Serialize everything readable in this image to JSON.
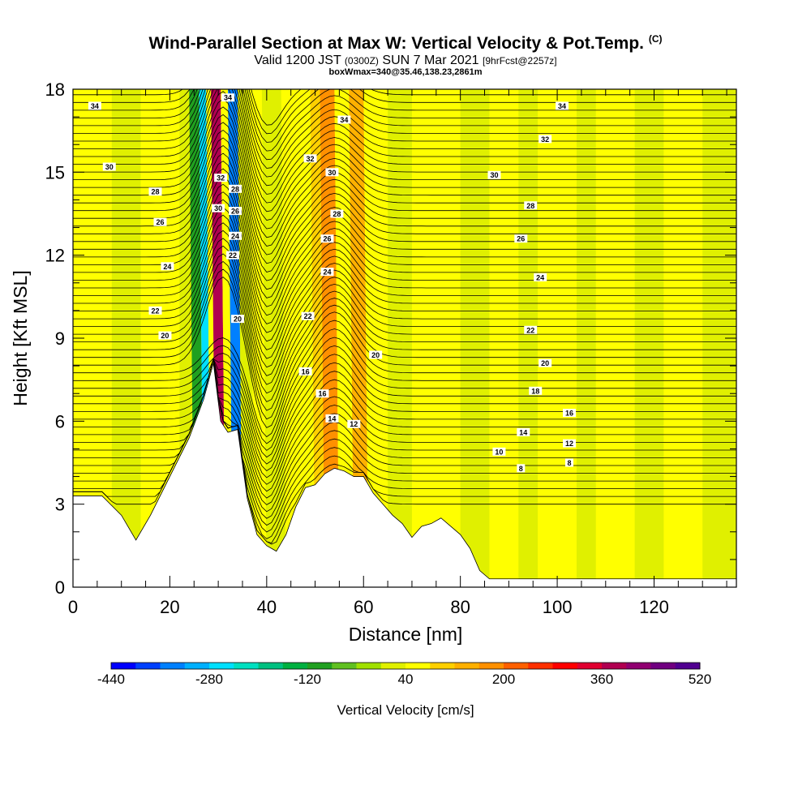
{
  "title": {
    "main": "Wind-Parallel Section at Max W: Vertical Velocity & Pot.Temp.",
    "main_unit": "(C)",
    "valid_prefix": "Valid 1200 JST",
    "valid_utc": "(0300Z)",
    "valid_date": "SUN 7 Mar 2021",
    "forecast": "[9hrFcst@2257z]",
    "box": "boxWmax=340@35.46,138.23,2861m"
  },
  "chart_data": {
    "type": "heatmap",
    "xlabel": "Distance [nm]",
    "ylabel": "Height [Kft MSL]",
    "xlim": [
      0,
      137
    ],
    "ylim": [
      0,
      18
    ],
    "xticks": [
      0,
      20,
      40,
      60,
      80,
      100,
      120
    ],
    "yticks": [
      0,
      3,
      6,
      9,
      12,
      15,
      18
    ],
    "colorbar": {
      "label": "Vertical Velocity [cm/s]",
      "min": -440,
      "max": 520,
      "step": 40,
      "tick_values": [
        -440,
        -280,
        -120,
        40,
        200,
        360,
        520
      ],
      "colors": [
        "#0000ff",
        "#0040ff",
        "#0080ff",
        "#00b0ff",
        "#00e0ff",
        "#00e0c0",
        "#00c080",
        "#00b040",
        "#20a020",
        "#60c020",
        "#a0e000",
        "#e0f000",
        "#ffff00",
        "#ffd000",
        "#ffb000",
        "#ff9000",
        "#ff6000",
        "#ff3000",
        "#ff0000",
        "#e00030",
        "#b00050",
        "#900070",
        "#700080",
        "#500090"
      ]
    },
    "terrain_kft": [
      [
        0,
        3.3
      ],
      [
        6,
        3.3
      ],
      [
        10,
        2.6
      ],
      [
        13,
        1.7
      ],
      [
        16,
        2.6
      ],
      [
        20,
        4.0
      ],
      [
        24,
        5.4
      ],
      [
        27,
        6.8
      ],
      [
        29,
        8.1
      ],
      [
        30.5,
        6.0
      ],
      [
        32,
        5.6
      ],
      [
        34,
        5.7
      ],
      [
        36,
        3.2
      ],
      [
        38,
        1.9
      ],
      [
        40,
        1.5
      ],
      [
        42,
        1.3
      ],
      [
        44,
        1.9
      ],
      [
        46,
        2.9
      ],
      [
        48,
        3.6
      ],
      [
        50,
        3.7
      ],
      [
        52,
        4.1
      ],
      [
        54,
        4.3
      ],
      [
        56,
        4.2
      ],
      [
        58,
        4.0
      ],
      [
        60,
        4.0
      ],
      [
        62,
        3.4
      ],
      [
        64,
        3.0
      ],
      [
        66,
        2.6
      ],
      [
        68,
        2.3
      ],
      [
        70,
        1.8
      ],
      [
        72,
        2.2
      ],
      [
        74,
        2.3
      ],
      [
        76,
        2.5
      ],
      [
        78,
        2.2
      ],
      [
        80,
        1.9
      ],
      [
        82,
        1.4
      ],
      [
        84,
        0.6
      ],
      [
        86,
        0.3
      ],
      [
        137,
        0.3
      ]
    ],
    "theta_contours": [
      {
        "label": "34",
        "base_kft": 17.4
      },
      {
        "label": "32",
        "base_kft": 15.7
      },
      {
        "label": "30",
        "base_kft": 14.9
      },
      {
        "label": "28",
        "base_kft": 13.6
      },
      {
        "label": "26",
        "base_kft": 12.3
      },
      {
        "label": "24",
        "base_kft": 11.0
      },
      {
        "label": "22",
        "base_kft": 9.5
      },
      {
        "label": "20",
        "base_kft": 8.1
      },
      {
        "label": "18",
        "base_kft": 7.3
      },
      {
        "label": "16",
        "base_kft": 6.7
      },
      {
        "label": "14",
        "base_kft": 5.8
      },
      {
        "label": "12",
        "base_kft": 5.3
      },
      {
        "label": "10",
        "base_kft": 5.0
      },
      {
        "label": "8",
        "base_kft": 4.6
      }
    ],
    "theta_labels": [
      {
        "text": "34",
        "x": 4.5,
        "y": 17.4
      },
      {
        "text": "34",
        "x": 32,
        "y": 17.7
      },
      {
        "text": "34",
        "x": 56,
        "y": 16.9
      },
      {
        "text": "34",
        "x": 101,
        "y": 17.4
      },
      {
        "text": "30",
        "x": 7.5,
        "y": 15.2
      },
      {
        "text": "32",
        "x": 49,
        "y": 15.5
      },
      {
        "text": "30",
        "x": 53.5,
        "y": 15.0
      },
      {
        "text": "32",
        "x": 97.5,
        "y": 16.2
      },
      {
        "text": "30",
        "x": 87,
        "y": 14.9
      },
      {
        "text": "28",
        "x": 17,
        "y": 14.3
      },
      {
        "text": "32",
        "x": 30.5,
        "y": 14.8
      },
      {
        "text": "28",
        "x": 33.5,
        "y": 14.4
      },
      {
        "text": "28",
        "x": 54.5,
        "y": 13.5
      },
      {
        "text": "28",
        "x": 94.5,
        "y": 13.8
      },
      {
        "text": "26",
        "x": 18,
        "y": 13.2
      },
      {
        "text": "30",
        "x": 30,
        "y": 13.7
      },
      {
        "text": "26",
        "x": 33.5,
        "y": 13.6
      },
      {
        "text": "26",
        "x": 52.5,
        "y": 12.6
      },
      {
        "text": "26",
        "x": 92.5,
        "y": 12.6
      },
      {
        "text": "24",
        "x": 33.5,
        "y": 12.7
      },
      {
        "text": "22",
        "x": 33,
        "y": 12.0
      },
      {
        "text": "24",
        "x": 19.5,
        "y": 11.6
      },
      {
        "text": "24",
        "x": 52.5,
        "y": 11.4
      },
      {
        "text": "24",
        "x": 96.5,
        "y": 11.2
      },
      {
        "text": "22",
        "x": 17,
        "y": 10.0
      },
      {
        "text": "22",
        "x": 48.5,
        "y": 9.8
      },
      {
        "text": "20",
        "x": 34,
        "y": 9.7
      },
      {
        "text": "22",
        "x": 94.5,
        "y": 9.3
      },
      {
        "text": "20",
        "x": 19,
        "y": 9.1
      },
      {
        "text": "20",
        "x": 62.5,
        "y": 8.4
      },
      {
        "text": "20",
        "x": 97.5,
        "y": 8.1
      },
      {
        "text": "16",
        "x": 48,
        "y": 7.8
      },
      {
        "text": "16",
        "x": 51.5,
        "y": 7.0
      },
      {
        "text": "18",
        "x": 95.5,
        "y": 7.1
      },
      {
        "text": "16",
        "x": 102.5,
        "y": 6.3
      },
      {
        "text": "14",
        "x": 53.5,
        "y": 6.1
      },
      {
        "text": "12",
        "x": 58,
        "y": 5.9
      },
      {
        "text": "14",
        "x": 93,
        "y": 5.6
      },
      {
        "text": "12",
        "x": 102.5,
        "y": 5.2
      },
      {
        "text": "10",
        "x": 88,
        "y": 4.9
      },
      {
        "text": "8",
        "x": 102.5,
        "y": 4.5
      },
      {
        "text": "8",
        "x": 92.5,
        "y": 4.3
      }
    ],
    "velocity_bands": [
      {
        "x0": 0,
        "x1": 8,
        "level": 40
      },
      {
        "x0": 8,
        "x1": 14,
        "level": 0
      },
      {
        "x0": 14,
        "x1": 22,
        "level": 40
      },
      {
        "x0": 22,
        "x1": 25,
        "level": 0
      },
      {
        "x0": 25,
        "x1": 27,
        "level": -120
      },
      {
        "x0": 27,
        "x1": 28.5,
        "level": -280
      },
      {
        "x0": 28.5,
        "x1": 29.5,
        "level": 40
      },
      {
        "x0": 29.5,
        "x1": 31.5,
        "level": 360
      },
      {
        "x0": 31.5,
        "x1": 33,
        "level": 40
      },
      {
        "x0": 33,
        "x1": 35,
        "level": -360
      },
      {
        "x0": 35,
        "x1": 37.5,
        "level": 0
      },
      {
        "x0": 37.5,
        "x1": 40,
        "level": 40
      },
      {
        "x0": 40,
        "x1": 44,
        "level": 0
      },
      {
        "x0": 44,
        "x1": 50,
        "level": 40
      },
      {
        "x0": 50,
        "x1": 52,
        "level": 80
      },
      {
        "x0": 52,
        "x1": 55,
        "level": 160
      },
      {
        "x0": 55,
        "x1": 58,
        "level": 40
      },
      {
        "x0": 58,
        "x1": 61,
        "level": 120
      },
      {
        "x0": 61,
        "x1": 65,
        "level": 40
      },
      {
        "x0": 65,
        "x1": 70,
        "level": 0
      },
      {
        "x0": 70,
        "x1": 80,
        "level": 40
      },
      {
        "x0": 80,
        "x1": 86,
        "level": 0
      },
      {
        "x0": 86,
        "x1": 92,
        "level": 40
      },
      {
        "x0": 92,
        "x1": 96,
        "level": 0
      },
      {
        "x0": 96,
        "x1": 104,
        "level": 40
      },
      {
        "x0": 104,
        "x1": 108,
        "level": 0
      },
      {
        "x0": 108,
        "x1": 116,
        "level": 40
      },
      {
        "x0": 116,
        "x1": 122,
        "level": 0
      },
      {
        "x0": 122,
        "x1": 130,
        "level": 40
      },
      {
        "x0": 130,
        "x1": 137,
        "level": 0
      }
    ]
  }
}
